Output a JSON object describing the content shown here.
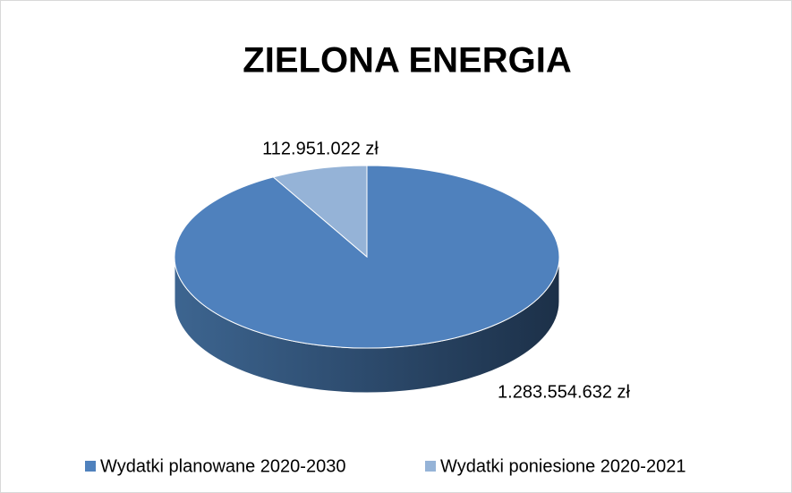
{
  "chart_data": {
    "type": "pie",
    "title": "ZIELONA ENERGIA",
    "categories": [
      "Wydatki planowane 2020-2030",
      "Wydatki poniesione 2020-2021"
    ],
    "values": [
      1283554632,
      112951022
    ],
    "value_labels": [
      "1.283.554.632 zł",
      "112.951.022 zł"
    ],
    "colors": [
      "#4f81bd",
      "#95b3d7"
    ],
    "legend": "bottom"
  }
}
